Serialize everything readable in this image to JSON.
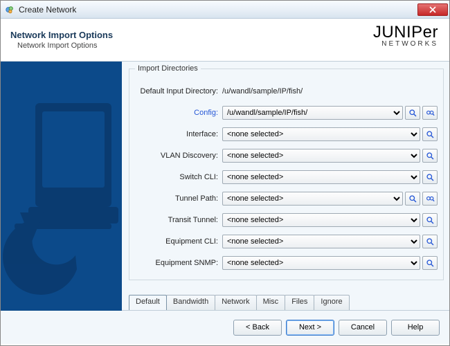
{
  "window": {
    "title": "Create Network"
  },
  "header": {
    "title": "Network Import Options",
    "subtitle": "Network Import Options",
    "brand_main": "JUNIPer",
    "brand_sub": "NETWORKS"
  },
  "colors": {
    "sidebar_bg": "#0c4a8a",
    "sidebar_shape": "#0a3a6e",
    "titlebar_grad_a": "#f7fbff",
    "titlebar_grad_b": "#d8e4ef",
    "panel_bg": "#f2f7fb",
    "highlight_label": "#2456d6"
  },
  "group": {
    "legend": "Import Directories",
    "default_dir_label": "Default Input Directory:",
    "default_dir_value": "/u/wandl/sample/IP/fish/"
  },
  "fields": [
    {
      "label": "Config:",
      "value": "/u/wandl/sample/IP/fish/",
      "highlight": true,
      "has_multi": true
    },
    {
      "label": "Interface:",
      "value": "<none selected>",
      "highlight": false,
      "has_multi": false
    },
    {
      "label": "VLAN Discovery:",
      "value": "<none selected>",
      "highlight": false,
      "has_multi": false
    },
    {
      "label": "Switch CLI:",
      "value": "<none selected>",
      "highlight": false,
      "has_multi": false
    },
    {
      "label": "Tunnel Path:",
      "value": "<none selected>",
      "highlight": false,
      "has_multi": true
    },
    {
      "label": "Transit Tunnel:",
      "value": "<none selected>",
      "highlight": false,
      "has_multi": false
    },
    {
      "label": "Equipment CLI:",
      "value": "<none selected>",
      "highlight": false,
      "has_multi": false
    },
    {
      "label": "Equipment SNMP:",
      "value": "<none selected>",
      "highlight": false,
      "has_multi": false
    }
  ],
  "tabs": [
    "Default",
    "Bandwidth",
    "Network",
    "Misc",
    "Files",
    "Ignore"
  ],
  "active_tab": 0,
  "footer": {
    "back": "< Back",
    "next": "Next >",
    "cancel": "Cancel",
    "help": "Help"
  }
}
